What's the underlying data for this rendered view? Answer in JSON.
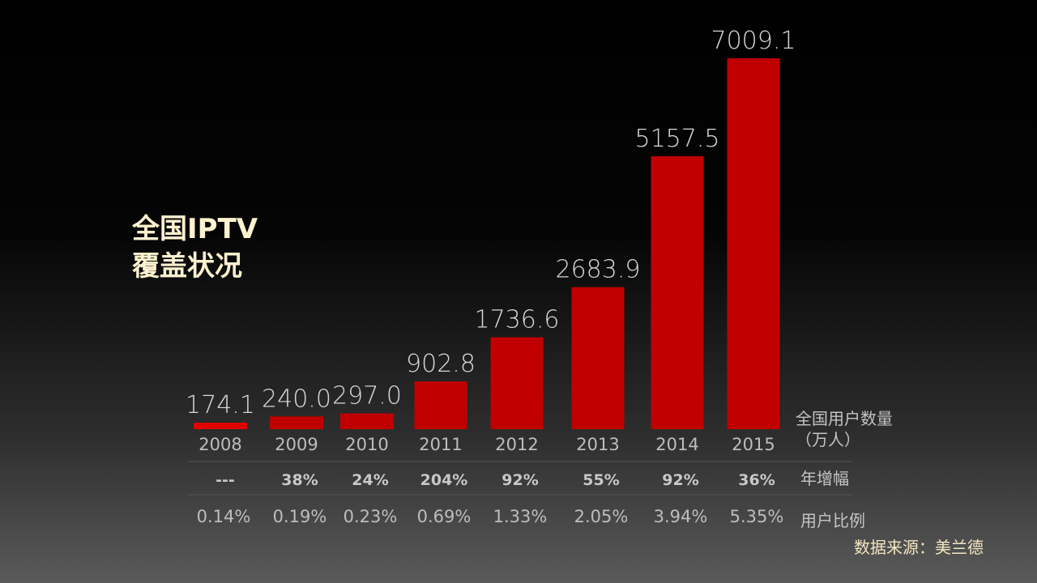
{
  "chart_data": {
    "type": "bar",
    "title_lines": [
      "全国IPTV",
      "覆盖状况"
    ],
    "categories": [
      "2008",
      "2009",
      "2010",
      "2011",
      "2012",
      "2013",
      "2014",
      "2015"
    ],
    "values": [
      174.1,
      240.0,
      297.0,
      902.8,
      1736.6,
      2683.9,
      5157.5,
      7009.1
    ],
    "value_labels": [
      "174.1",
      "240.0",
      "297.0",
      "902.8",
      "1736.6",
      "2683.9",
      "5157.5",
      "7009.1"
    ],
    "growth": [
      "---",
      "38%",
      "24%",
      "204%",
      "92%",
      "55%",
      "92%",
      "36%"
    ],
    "user_ratio": [
      "0.14%",
      "0.19%",
      "0.23%",
      "0.69%",
      "1.33%",
      "2.05%",
      "3.94%",
      "5.35%"
    ],
    "row_labels": {
      "values_line1": "全国用户数量",
      "values_line2": "（万人）",
      "growth": "年增幅",
      "ratio": "用户比例"
    },
    "source": "数据来源：美兰德",
    "bar_color": "#c00000",
    "ylim": [
      0,
      7009.1
    ],
    "grid": false,
    "legend": "none"
  }
}
